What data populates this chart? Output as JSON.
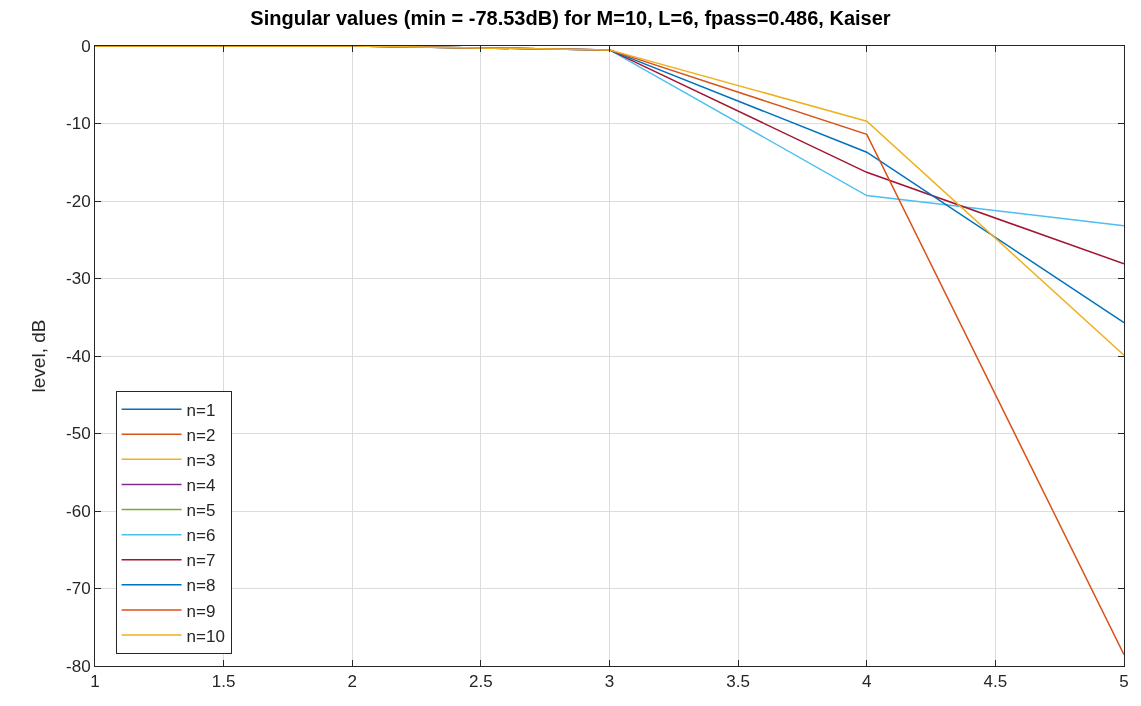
{
  "chart_data": {
    "type": "line",
    "title": "Singular values (min = -78.53dB) for M=10, L=6, fpass=0.486, Kaiser",
    "ylabel": "level, dB",
    "x": [
      1,
      2,
      3,
      4,
      5
    ],
    "xlim": [
      1,
      5
    ],
    "xticks": [
      1,
      1.5,
      2,
      2.5,
      3,
      3.5,
      4,
      4.5,
      5
    ],
    "ylim": [
      -80,
      0
    ],
    "yticks": [
      -80,
      -70,
      -60,
      -50,
      -40,
      -30,
      -20,
      -10,
      0
    ],
    "grid": true,
    "legend": "bottom left",
    "marker": "none",
    "line_style": "solid",
    "series": [
      {
        "name": "n=1",
        "color": "#0072bd",
        "values": [
          null,
          null,
          null,
          null,
          null
        ]
      },
      {
        "name": "n=2",
        "color": "#d95319",
        "values": [
          null,
          null,
          null,
          null,
          null
        ]
      },
      {
        "name": "n=3",
        "color": "#edb120",
        "values": [
          null,
          null,
          null,
          null,
          null
        ]
      },
      {
        "name": "n=4",
        "color": "#7e2f8e",
        "values": [
          null,
          null,
          null,
          null,
          null
        ]
      },
      {
        "name": "n=5",
        "color": "#77ac30",
        "values": [
          null,
          null,
          null,
          null,
          null
        ]
      },
      {
        "name": "n=6",
        "color": "#4dbeee",
        "values": [
          0,
          0,
          -0.5,
          -19.3,
          -23.2
        ]
      },
      {
        "name": "n=7",
        "color": "#a2142f",
        "values": [
          0,
          0,
          -0.5,
          -16.3,
          -28.1
        ]
      },
      {
        "name": "n=8",
        "color": "#0072bd",
        "values": [
          0,
          0,
          -0.5,
          -13.7,
          -35.7
        ]
      },
      {
        "name": "n=9",
        "color": "#d95319",
        "values": [
          0,
          0,
          -0.5,
          -11.4,
          -78.53
        ]
      },
      {
        "name": "n=10",
        "color": "#edb120",
        "values": [
          0,
          0,
          -0.5,
          -9.7,
          -39.9
        ]
      }
    ]
  }
}
